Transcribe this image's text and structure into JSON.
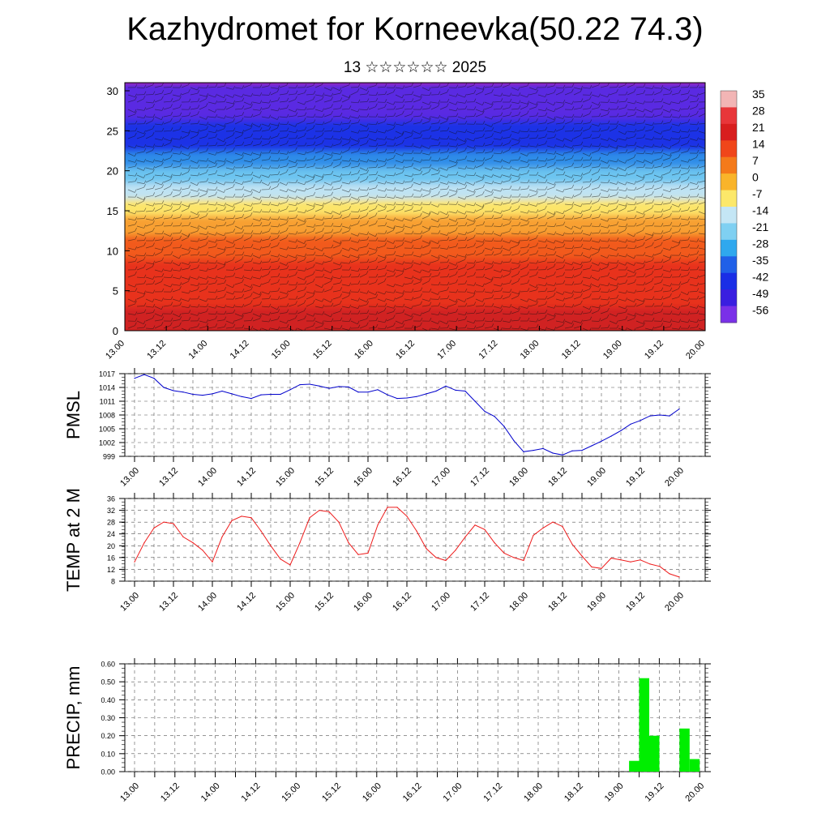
{
  "title": "Kazhydromet for Korneevka(50.22 74.3)",
  "subtitle": "13 ☆☆☆☆☆☆ 2025",
  "time_labels": [
    "13.00",
    "13.12",
    "14.00",
    "14.12",
    "15.00",
    "15.12",
    "16.00",
    "16.12",
    "17.00",
    "17.12",
    "18.00",
    "18.12",
    "19.00",
    "19.12",
    "20.00"
  ],
  "colorbar": {
    "labels": [
      "35",
      "28",
      "21",
      "14",
      "7",
      "0",
      "-7",
      "-14",
      "-21",
      "-28",
      "-35",
      "-42",
      "-49",
      "-56"
    ],
    "colors": [
      "#f2b5b5",
      "#e8363a",
      "#d81e1e",
      "#f0461a",
      "#f47a1a",
      "#f9b42a",
      "#fce86a",
      "#c4e6f5",
      "#7fd0f2",
      "#2fa8ee",
      "#2060e8",
      "#1a2ee6",
      "#3a1ee0",
      "#7a30e8"
    ]
  },
  "chart_data": [
    {
      "type": "heatmap",
      "description_fields": [
        "temperature",
        "wind"
      ],
      "ylim": [
        0,
        30
      ],
      "y_ticks": [
        "0",
        "5",
        "10",
        "15",
        "20",
        "25",
        "30"
      ],
      "x_ticks": [
        "13.00",
        "13.12",
        "14.00",
        "14.12",
        "15.00",
        "15.12",
        "16.00",
        "16.12",
        "17.00",
        "17.12",
        "18.00",
        "18.12",
        "19.00",
        "19.12",
        "20.00"
      ],
      "bands": [
        {
          "from": 0,
          "to": 3,
          "color": "#d02020"
        },
        {
          "from": 3,
          "to": 9,
          "color": "#e8301c"
        },
        {
          "from": 9,
          "to": 12,
          "color": "#f25a1a"
        },
        {
          "from": 12,
          "to": 14.5,
          "color": "#f8a030"
        },
        {
          "from": 14.5,
          "to": 16.5,
          "color": "#fce56a"
        },
        {
          "from": 16.5,
          "to": 18.5,
          "color": "#bfe3f3"
        },
        {
          "from": 18.5,
          "to": 20.5,
          "color": "#6cc4f0"
        },
        {
          "from": 20.5,
          "to": 22.5,
          "color": "#2f8ce8"
        },
        {
          "from": 22.5,
          "to": 26.5,
          "color": "#1c30e6"
        },
        {
          "from": 26.5,
          "to": 31,
          "color": "#5a2ae2"
        }
      ]
    },
    {
      "type": "line",
      "ylabel": "PMSL",
      "color": "#0000cc",
      "ylim": [
        999,
        1017
      ],
      "y_ticks": [
        "999",
        "1002",
        "1005",
        "1008",
        "1011",
        "1014",
        "1017"
      ],
      "x": [
        0,
        3,
        6,
        9,
        12,
        15,
        18,
        21,
        24,
        27,
        30,
        33,
        36,
        39,
        42,
        45,
        48,
        51,
        54,
        57,
        60,
        63,
        66,
        69,
        72,
        75,
        78,
        81,
        84,
        87,
        90,
        93,
        96,
        99,
        102,
        105,
        108,
        111,
        114,
        117,
        120,
        123,
        126,
        129,
        132,
        135,
        138,
        141,
        144,
        147,
        150,
        153,
        156,
        159,
        162,
        165,
        168
      ],
      "values": [
        1016,
        1016.8,
        1016,
        1014,
        1013.3,
        1013,
        1012.5,
        1012.3,
        1012.6,
        1013.2,
        1012.6,
        1012,
        1011.6,
        1012.4,
        1012.5,
        1012.5,
        1013.5,
        1014.6,
        1014.7,
        1014.3,
        1013.8,
        1014.2,
        1014.1,
        1013,
        1013,
        1013.5,
        1012.4,
        1011.6,
        1011.7,
        1012,
        1012.6,
        1013.2,
        1014.3,
        1013.4,
        1013.2,
        1011,
        1008.8,
        1007.7,
        1005.5,
        1002.4,
        1000,
        1000.3,
        1000.7,
        999.7,
        999.3,
        1000.2,
        1000.3,
        1001.3,
        1002.3,
        1003.4,
        1004.6,
        1006,
        1006.8,
        1007.8,
        1008,
        1007.8,
        1009.3
      ]
    },
    {
      "type": "line",
      "ylabel": "TEMP at 2 M",
      "color": "#ee1c1c",
      "ylim": [
        8,
        36
      ],
      "y_ticks": [
        "8",
        "12",
        "16",
        "20",
        "24",
        "28",
        "32",
        "36"
      ],
      "x": [
        0,
        3,
        6,
        9,
        12,
        15,
        18,
        21,
        24,
        27,
        30,
        33,
        36,
        39,
        42,
        45,
        48,
        51,
        54,
        57,
        60,
        63,
        66,
        69,
        72,
        75,
        78,
        81,
        84,
        87,
        90,
        93,
        96,
        99,
        102,
        105,
        108,
        111,
        114,
        117,
        120,
        123,
        126,
        129,
        132,
        135,
        138,
        141,
        144,
        147,
        150,
        153,
        156,
        159,
        162,
        165,
        168
      ],
      "values": [
        14.5,
        21,
        26,
        28,
        27.5,
        23,
        21,
        18.5,
        14.5,
        23,
        28.5,
        30,
        29.5,
        25,
        20,
        15.5,
        13.5,
        21,
        29.5,
        32,
        31.5,
        28,
        21,
        17,
        17.5,
        27,
        33,
        33,
        30,
        25,
        19,
        16,
        15,
        18.5,
        23,
        27,
        25.5,
        21,
        17.5,
        16,
        15,
        23.5,
        26,
        28,
        26.5,
        20.5,
        16.5,
        12.8,
        12.3,
        15.8,
        15.2,
        14.5,
        15.2,
        13.8,
        13,
        10.5,
        9.4
      ]
    },
    {
      "type": "bar",
      "ylabel": "PRECIP, mm",
      "color": "#00ee00",
      "ylim": [
        0,
        0.6
      ],
      "y_ticks": [
        "0.00",
        "0.10",
        "0.20",
        "0.30",
        "0.40",
        "0.50",
        "0.60"
      ],
      "x_start": [
        147,
        150,
        153,
        156,
        159,
        162,
        165
      ],
      "values": [
        0.06,
        0.52,
        0.2,
        0.0,
        0.0,
        0.24,
        0.07
      ]
    }
  ]
}
